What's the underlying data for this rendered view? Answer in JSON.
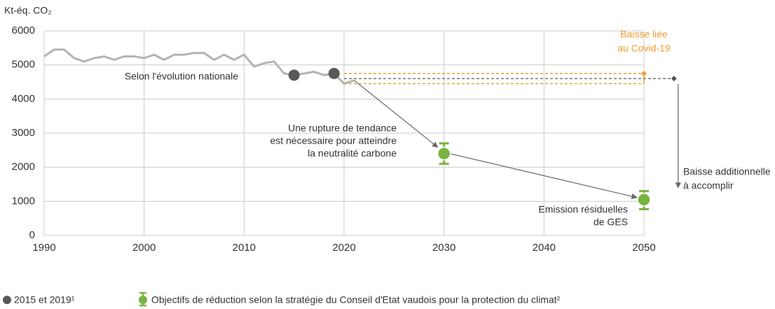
{
  "chart_data": {
    "type": "line",
    "y_label": "Kt-éq. CO₂",
    "xlim": [
      1990,
      2050
    ],
    "ylim": [
      0,
      6000
    ],
    "xticks": [
      1990,
      2000,
      2010,
      2020,
      2030,
      2040,
      2050
    ],
    "yticks": [
      0,
      1000,
      2000,
      3000,
      4000,
      5000,
      6000
    ],
    "grid": true,
    "trend": {
      "color": "#b3b3b3",
      "x": [
        1990,
        1991,
        1992,
        1993,
        1994,
        1995,
        1996,
        1997,
        1998,
        1999,
        2000,
        2001,
        2002,
        2003,
        2004,
        2005,
        2006,
        2007,
        2008,
        2009,
        2010,
        2011,
        2012,
        2013,
        2014,
        2015,
        2016,
        2017,
        2018,
        2019,
        2020,
        2021
      ],
      "values": [
        5250,
        5450,
        5450,
        5200,
        5100,
        5200,
        5250,
        5150,
        5250,
        5250,
        5200,
        5300,
        5150,
        5300,
        5300,
        5350,
        5350,
        5150,
        5300,
        5150,
        5300,
        4950,
        5050,
        5100,
        4750,
        4700,
        4750,
        4800,
        4700,
        4750,
        4450,
        4550
      ]
    },
    "points": {
      "name": "2015 et 2019¹",
      "color": "#595959",
      "x": [
        2015,
        2019
      ],
      "values": [
        4700,
        4750
      ]
    },
    "targets": {
      "name": "Objectifs de réduction selon la stratégie du Conseil d'Etat vaudois pour la protection du climat²",
      "color": "#7ab342",
      "x": [
        2030,
        2050
      ],
      "values": [
        2400,
        1050
      ],
      "low": [
        2100,
        770
      ],
      "high": [
        2700,
        1300
      ]
    },
    "covid": {
      "text": [
        "Baisse liée",
        "au Covid-19"
      ],
      "color": "#f39c32",
      "from": 2020,
      "to": 2050,
      "values": [
        4750,
        4450
      ]
    },
    "additional": {
      "text": [
        "Baisse additionnelle",
        "à accomplir"
      ],
      "color": "#595959",
      "x": 2053,
      "from": 4600,
      "to": 1400
    },
    "annotations": [
      [
        "Selon l'évolution nationale"
      ],
      [
        "Une rupture de tendance",
        "est nécessaire pour atteindre",
        "la neutralité carbone"
      ],
      [
        "Emission résiduelles",
        "de GES"
      ]
    ]
  }
}
